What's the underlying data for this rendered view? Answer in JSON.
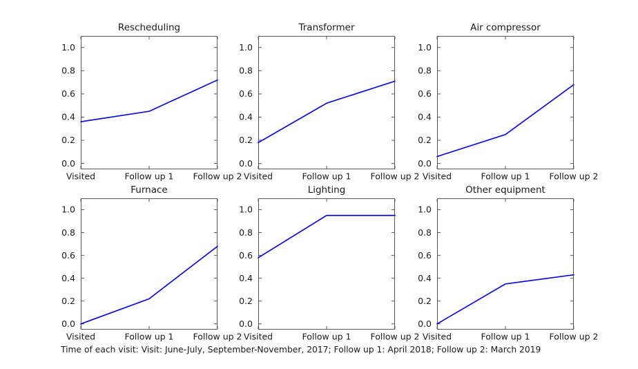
{
  "figure": {
    "caption": "Time of each visit: Visit: June-July, September-November, 2017; Follow up 1: April 2018; Follow up 2: March 2019"
  },
  "chart_data": {
    "type": "line",
    "layout": "2x3 grid of subplots, shared style",
    "categories": [
      "Visited",
      "Follow up 1",
      "Follow up 2"
    ],
    "yticks": [
      0.0,
      0.2,
      0.4,
      0.6,
      0.8,
      1.0
    ],
    "ylim": [
      -0.05,
      1.1
    ],
    "grid": false,
    "legend": "none",
    "line_color": "#0b0bf0",
    "frame_color": "#555555",
    "charts": [
      {
        "title": "Rescheduling",
        "values": [
          0.36,
          0.45,
          0.72
        ]
      },
      {
        "title": "Transformer",
        "values": [
          0.18,
          0.52,
          0.71
        ]
      },
      {
        "title": "Air compressor",
        "values": [
          0.06,
          0.25,
          0.68
        ]
      },
      {
        "title": "Furnace",
        "values": [
          0.0,
          0.22,
          0.68
        ]
      },
      {
        "title": "Lighting",
        "values": [
          0.58,
          0.95,
          0.95
        ]
      },
      {
        "title": "Other equipment",
        "values": [
          0.0,
          0.35,
          0.43
        ]
      }
    ],
    "caption": "Time of each visit: Visit: June-July, September-November, 2017; Follow up 1: April 2018; Follow up 2: March 2019"
  }
}
